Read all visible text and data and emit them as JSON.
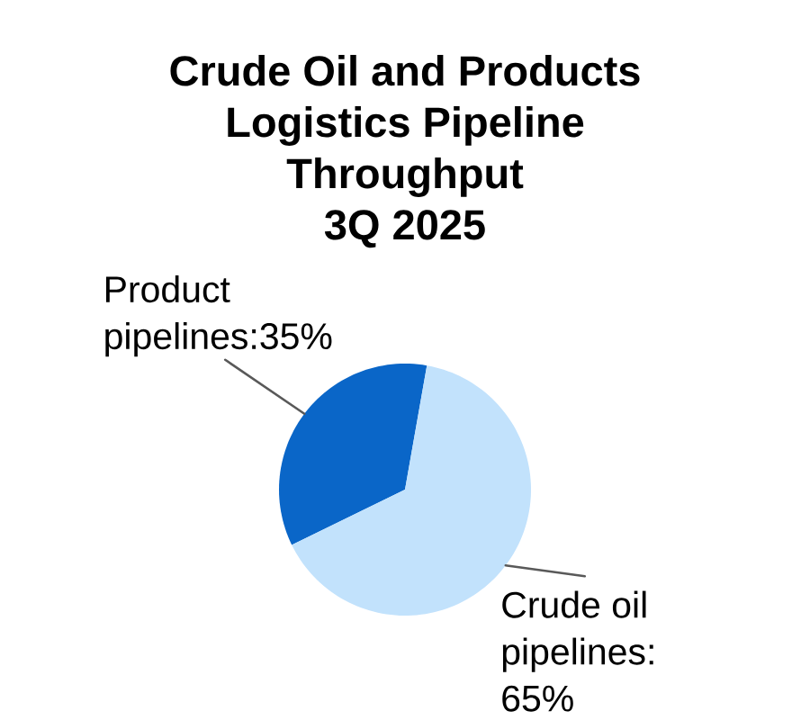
{
  "chart_data": {
    "type": "pie",
    "title": "Crude Oil and Products Logistics Pipeline Throughput",
    "subtitle": "3Q 2025",
    "categories": [
      "Product pipelines",
      "Crude oil pipelines"
    ],
    "values": [
      35,
      65
    ],
    "value_labels": [
      ":35%",
      ": 65%"
    ],
    "colors": [
      "#0a66c8",
      "#c2e2fc"
    ]
  }
}
